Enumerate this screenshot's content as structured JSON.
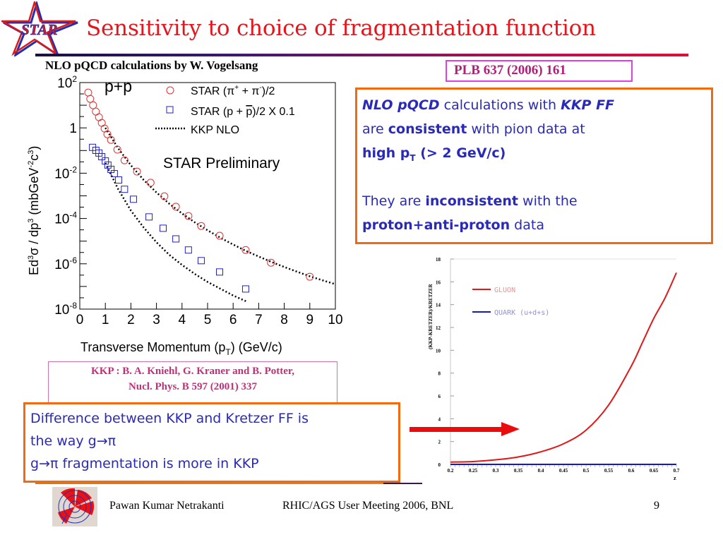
{
  "header": {
    "logo_text": "STAR",
    "title": "Sensitivity to choice of fragmentation function",
    "subtitle": "NLO pQCD calculations by W. Vogelsang",
    "reference": "PLB 637 (2006) 161"
  },
  "conclusion_box": {
    "line1": [
      {
        "text": "NLO pQCD",
        "style": "bold-italic"
      },
      {
        "text": " calculations with ",
        "style": "normal"
      },
      {
        "text": "KKP FF",
        "style": "bold-italic"
      }
    ],
    "line2": [
      {
        "text": "are ",
        "style": "normal"
      },
      {
        "text": "consistent",
        "style": "bold"
      },
      {
        "text": " with pion data  at",
        "style": "normal"
      }
    ],
    "line3": {
      "pre": "high p",
      "sub": "T",
      "post": " (> 2 GeV/c)"
    },
    "line4": [
      {
        "text": "They are ",
        "style": "normal"
      },
      {
        "text": "inconsistent",
        "style": "bold"
      },
      {
        "text": " with the",
        "style": "normal"
      }
    ],
    "line5": [
      {
        "text": "proton+anti-proton",
        "style": "bold"
      },
      {
        "text": " data",
        "style": "normal"
      }
    ]
  },
  "kkp_reference": {
    "line1": "KKP : B. A. Kniehl, G. Kraner and B. Potter,",
    "line2": "Nucl. Phys. B  597 (2001) 337"
  },
  "difference_box": {
    "line1": "Difference between KKP and Kretzer FF is",
    "line2": "the way g→π",
    "line3": "g→π fragmentation is more in KKP"
  },
  "footer": {
    "author": "Pawan Kumar Netrakanti",
    "meeting": "RHIC/AGS User Meeting 2006, BNL",
    "page_number": "9"
  },
  "colors": {
    "title": "#e8141c",
    "box_border": "#f26a10",
    "body_text": "#2a2ab8",
    "reference_text": "#b0207a",
    "pion": "#e03030",
    "proton": "#2020c0",
    "gluon": "#e01818",
    "quark": "#1818c0"
  },
  "chart_data": [
    {
      "type": "scatter",
      "title": "",
      "system_label": "p+p",
      "watermark": "STAR Preliminary",
      "xlabel": {
        "pre": "Transverse Momentum (p",
        "sub": "T",
        "post": ") (GeV/c)"
      },
      "ylabel": {
        "text": "Ed3σ / dp3 (mbGeV-2c3)"
      },
      "xlim": [
        0,
        10
      ],
      "ylim_log10": [
        -8,
        2
      ],
      "y_scale": "log",
      "xticks": [
        "0",
        "1",
        "2",
        "3",
        "4",
        "5",
        "6",
        "7",
        "8",
        "9",
        "10"
      ],
      "yticks": [
        {
          "base": "10",
          "exp": "2",
          "log": 2
        },
        {
          "base": "1",
          "exp": "",
          "log": 0
        },
        {
          "base": "10",
          "exp": "-2",
          "log": -2
        },
        {
          "base": "10",
          "exp": "-4",
          "log": -4
        },
        {
          "base": "10",
          "exp": "-6",
          "log": -6
        },
        {
          "base": "10",
          "exp": "-8",
          "log": -8
        }
      ],
      "legend_position": "top-right",
      "series": [
        {
          "name": "STAR (π+ + π-)/2",
          "legend": {
            "pre": "STAR (π",
            "sup1": "+",
            "mid": " + π",
            "sup2": "-",
            "post": ")/2"
          },
          "marker": "open-circle",
          "x": [
            0.33,
            0.41,
            0.52,
            0.63,
            0.75,
            0.86,
            0.97,
            1.08,
            1.22,
            1.47,
            1.75,
            2.24,
            2.77,
            3.31,
            3.76,
            4.25,
            4.75,
            5.47,
            6.49,
            7.48,
            9.0
          ],
          "log10_y": [
            1.56,
            1.28,
            1.0,
            0.72,
            0.47,
            0.22,
            -0.03,
            -0.28,
            -0.53,
            -0.96,
            -1.43,
            -1.93,
            -2.42,
            -3.02,
            -3.48,
            -3.89,
            -4.33,
            -4.76,
            -5.39,
            -5.95,
            -6.57
          ]
        },
        {
          "name": "STAR (p + p̅)/2 X 0.1",
          "legend": {
            "pre": "STAR (p + ",
            "over": "p",
            "post": ")/2 X 0.1"
          },
          "marker": "open-square",
          "x": [
            0.5,
            0.63,
            0.75,
            0.86,
            1.0,
            1.1,
            1.22,
            1.35,
            1.52,
            1.75,
            2.1,
            2.71,
            3.26,
            3.76,
            4.25,
            4.75,
            5.47,
            6.49
          ],
          "log10_y": [
            -0.86,
            -0.99,
            -1.11,
            -1.27,
            -1.46,
            -1.64,
            -1.83,
            -2.02,
            -2.3,
            -2.71,
            -3.15,
            -3.93,
            -4.43,
            -4.9,
            -5.39,
            -5.86,
            -6.36,
            -7.11
          ]
        },
        {
          "name": "KKP NLO",
          "legend": {
            "text": "KKP NLO"
          },
          "marker": "dotted-line",
          "curves": [
            {
              "x": [
                1.0,
                1.5,
                2.0,
                2.5,
                3.0,
                3.5,
                4.0,
                4.5,
                5.0,
                5.5,
                6.0,
                6.5,
                7.0,
                7.5,
                8.0,
                8.5,
                9.0,
                9.5,
                10.0
              ],
              "log10_y": [
                0.0,
                -0.9,
                -1.65,
                -2.3,
                -2.85,
                -3.35,
                -3.78,
                -4.17,
                -4.52,
                -4.85,
                -5.15,
                -5.43,
                -5.68,
                -5.92,
                -6.14,
                -6.35,
                -6.55,
                -6.73,
                -6.9
              ]
            },
            {
              "x": [
                1.0,
                1.5,
                2.0,
                2.5,
                3.0,
                3.5,
                4.0,
                4.5,
                5.0,
                5.5,
                6.0,
                6.5
              ],
              "log10_y": [
                -1.55,
                -2.7,
                -3.65,
                -4.4,
                -5.05,
                -5.6,
                -6.05,
                -6.45,
                -6.8,
                -7.1,
                -7.4,
                -7.65
              ]
            }
          ]
        }
      ]
    },
    {
      "type": "line",
      "title": "",
      "xlabel": "z",
      "ylabel": "(KKP-KRETZER)/KRETZER",
      "xlim": [
        0.2,
        0.7
      ],
      "ylim": [
        0,
        18
      ],
      "xticks": [
        "0.2",
        "0.25",
        "0.3",
        "0.35",
        "0.4",
        "0.45",
        "0.5",
        "0.55",
        "0.6",
        "0.65",
        "0.7"
      ],
      "yticks": [
        "0",
        "2",
        "4",
        "6",
        "8",
        "10",
        "12",
        "14",
        "16",
        "18"
      ],
      "legend_position": "top-left",
      "series": [
        {
          "name": "GLUON",
          "x": [
            0.2,
            0.25,
            0.3,
            0.35,
            0.4,
            0.45,
            0.5,
            0.55,
            0.6,
            0.625,
            0.65,
            0.675,
            0.7
          ],
          "y": [
            0.2,
            0.25,
            0.4,
            0.65,
            1.1,
            1.8,
            3.0,
            5.2,
            8.6,
            10.7,
            12.8,
            14.6,
            16.8
          ]
        },
        {
          "name": "QUARK (u+d+s)",
          "x": [
            0.2,
            0.7
          ],
          "y": [
            0.0,
            0.0
          ]
        }
      ]
    }
  ]
}
